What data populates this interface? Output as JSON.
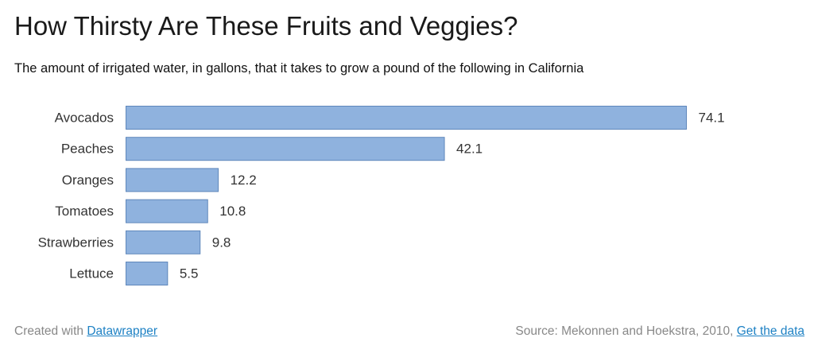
{
  "chart_data": {
    "type": "bar",
    "orientation": "horizontal",
    "title": "How Thirsty Are These Fruits and Veggies?",
    "subtitle": "The amount of irrigated water, in gallons, that it takes to grow a pound of the following in California",
    "categories": [
      "Avocados",
      "Peaches",
      "Oranges",
      "Tomatoes",
      "Strawberries",
      "Lettuce"
    ],
    "values": [
      74.1,
      42.1,
      12.2,
      10.8,
      9.8,
      5.5
    ],
    "value_labels": [
      "74.1",
      "42.1",
      "12.2",
      "10.8",
      "9.8",
      "5.5"
    ],
    "xlim": [
      0,
      74.1
    ],
    "xlabel": "",
    "ylabel": "",
    "grid": false,
    "colors": {
      "bar_fill": "#8fb2de",
      "bar_stroke": "#5f87bb"
    }
  },
  "footer": {
    "created_with": "Created with ",
    "datawrapper_link": "Datawrapper",
    "source": "Source: Mekonnen and Hoekstra, 2010, ",
    "get_data_link": "Get the data"
  }
}
